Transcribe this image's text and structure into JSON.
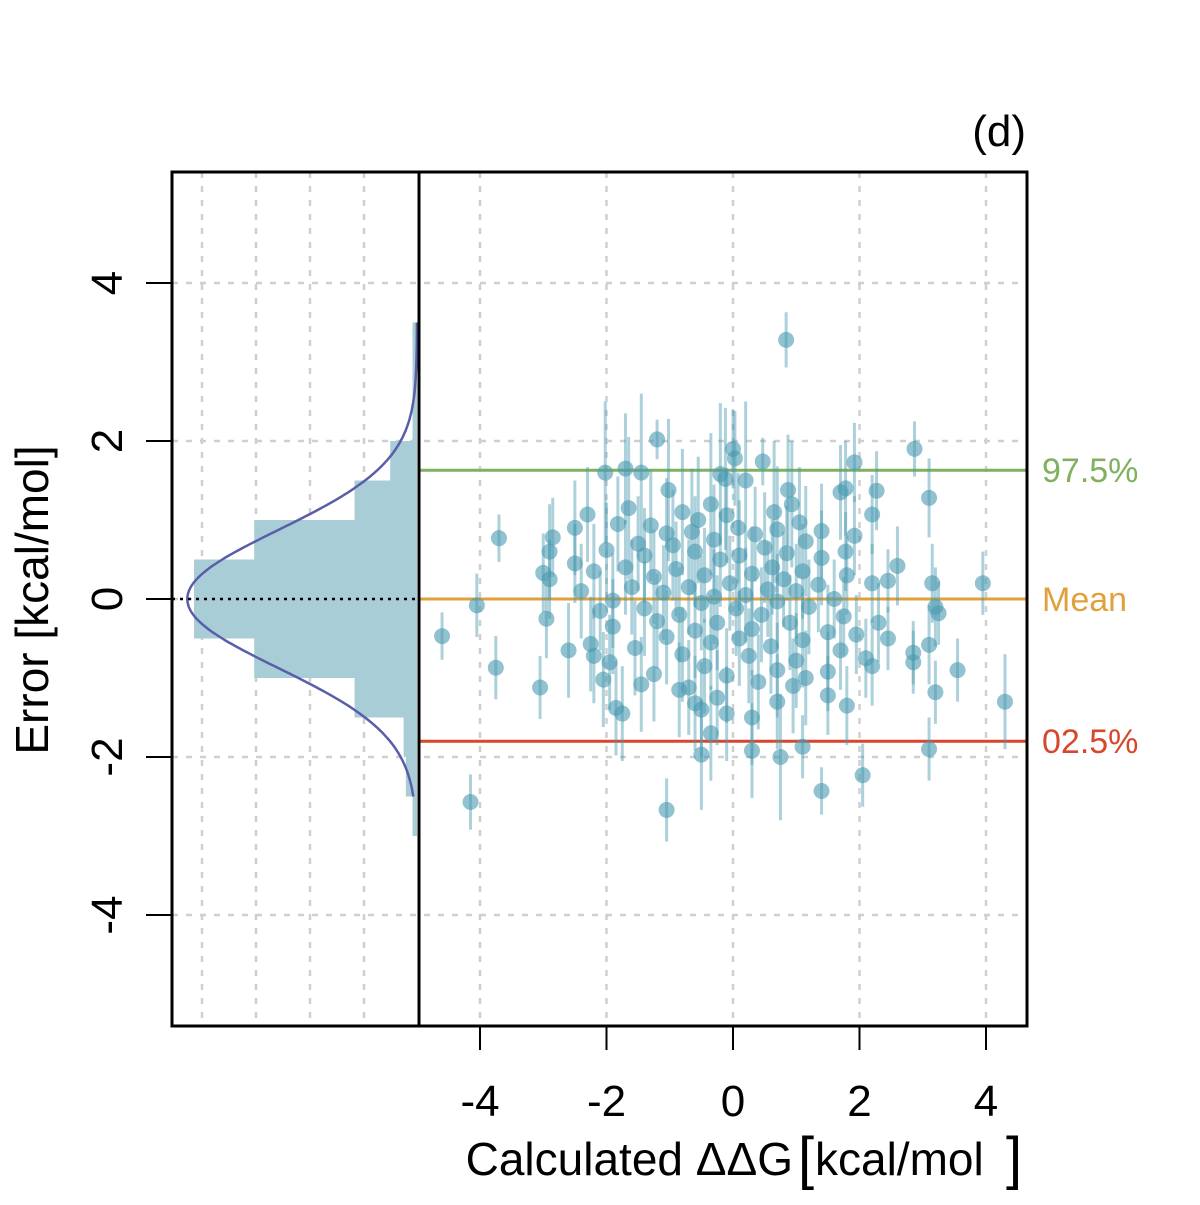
{
  "chart_data": {
    "type": "scatter",
    "panel_label": "(d)",
    "xlabel": "Calculated  ΔΔG",
    "xlabel_units": "kcal/mol",
    "ylabel": "Error [kcal/mol]",
    "xlim": [
      -5,
      4.7
    ],
    "ylim": [
      -5.4,
      5.4
    ],
    "x_ticks": [
      -4,
      -2,
      0,
      2,
      4
    ],
    "y_ticks": [
      -4,
      -2,
      0,
      2,
      4
    ],
    "x_tick_labels": [
      "-4",
      "-2",
      "0",
      "2",
      "4"
    ],
    "y_tick_labels": [
      "-4",
      "-2",
      "0",
      "2",
      "4"
    ],
    "grid": true,
    "reference_lines": [
      {
        "name": "97.5%",
        "label": "97.5%",
        "y": 1.63,
        "color": "#7fb160"
      },
      {
        "name": "mean",
        "label": "Mean",
        "y": 0.0,
        "color": "#e0a13a"
      },
      {
        "name": "2.5%",
        "label": "02.5%",
        "y": -1.8,
        "color": "#d6472d"
      }
    ],
    "zero_line_style": "dotted",
    "histogram": {
      "orientation": "horizontal",
      "bin_width": 0.5,
      "bins": [
        {
          "y0": -3.0,
          "y1": -2.5,
          "count": 0.2
        },
        {
          "y0": -2.5,
          "y1": -2.0,
          "count": 0.5
        },
        {
          "y0": -2.0,
          "y1": -1.5,
          "count": 0.6
        },
        {
          "y0": -1.5,
          "y1": -1.0,
          "count": 2.8
        },
        {
          "y0": -1.0,
          "y1": -0.5,
          "count": 7.3
        },
        {
          "y0": -0.5,
          "y1": 0.0,
          "count": 10.0
        },
        {
          "y0": 0.0,
          "y1": 0.5,
          "count": 10.0
        },
        {
          "y0": 0.5,
          "y1": 1.0,
          "count": 7.3
        },
        {
          "y0": 1.0,
          "y1": 1.5,
          "count": 2.8
        },
        {
          "y0": 1.5,
          "y1": 2.0,
          "count": 1.2
        },
        {
          "y0": 2.0,
          "y1": 2.5,
          "count": 0.2
        },
        {
          "y0": 2.5,
          "y1": 3.0,
          "count": 0.2
        },
        {
          "y0": 3.0,
          "y1": 3.5,
          "count": 0.2
        }
      ],
      "max_count": 10.0,
      "normal_fit": {
        "mean": 0.0,
        "sd": 0.87,
        "peak": 10.3,
        "y_range": [
          -2.5,
          3.5
        ]
      },
      "bar_color": "#a8cdd6",
      "curve_color": "#5a5ea8"
    },
    "point_color": "#4a9ab0",
    "series": [
      {
        "name": "residuals",
        "points": [
          {
            "x": 0.84,
            "y": 3.28,
            "err": 0.35
          },
          {
            "x": -1.2,
            "y": 2.02,
            "err": 0.25
          },
          {
            "x": 2.87,
            "y": 1.9,
            "err": 0.35
          },
          {
            "x": 0.0,
            "y": 1.9,
            "err": 0.5
          },
          {
            "x": 0.03,
            "y": 1.78,
            "err": 0.6
          },
          {
            "x": 0.47,
            "y": 1.74,
            "err": 0.3
          },
          {
            "x": 1.92,
            "y": 1.73,
            "err": 0.5
          },
          {
            "x": -0.2,
            "y": 1.58,
            "err": 0.9
          },
          {
            "x": -0.12,
            "y": 1.52,
            "err": 0.9
          },
          {
            "x": 0.2,
            "y": 1.5,
            "err": 1.0
          },
          {
            "x": -1.7,
            "y": 1.65,
            "err": 0.7
          },
          {
            "x": -2.02,
            "y": 1.6,
            "err": 0.9
          },
          {
            "x": -1.45,
            "y": 1.6,
            "err": 1.0
          },
          {
            "x": 1.78,
            "y": 1.4,
            "err": 0.6
          },
          {
            "x": 2.27,
            "y": 1.37,
            "err": 0.5
          },
          {
            "x": 1.7,
            "y": 1.35,
            "err": 0.6
          },
          {
            "x": -1.02,
            "y": 1.38,
            "err": 0.9
          },
          {
            "x": 0.87,
            "y": 1.38,
            "err": 0.7
          },
          {
            "x": 3.1,
            "y": 1.28,
            "err": 0.5
          },
          {
            "x": -0.35,
            "y": 1.2,
            "err": 0.9
          },
          {
            "x": 0.93,
            "y": 1.2,
            "err": 0.8
          },
          {
            "x": -1.65,
            "y": 1.15,
            "err": 0.9
          },
          {
            "x": -0.8,
            "y": 1.1,
            "err": 0.8
          },
          {
            "x": 0.65,
            "y": 1.1,
            "err": 0.9
          },
          {
            "x": 2.2,
            "y": 1.07,
            "err": 0.5
          },
          {
            "x": -2.3,
            "y": 1.07,
            "err": 0.6
          },
          {
            "x": -0.1,
            "y": 1.06,
            "err": 0.6
          },
          {
            "x": -0.55,
            "y": 1.0,
            "err": 0.8
          },
          {
            "x": 1.05,
            "y": 0.97,
            "err": 0.7
          },
          {
            "x": -1.82,
            "y": 0.95,
            "err": 0.6
          },
          {
            "x": -1.3,
            "y": 0.93,
            "err": 0.7
          },
          {
            "x": 0.08,
            "y": 0.9,
            "err": 0.7
          },
          {
            "x": 0.7,
            "y": 0.88,
            "err": 0.8
          },
          {
            "x": -2.5,
            "y": 0.9,
            "err": 0.6
          },
          {
            "x": 1.4,
            "y": 0.86,
            "err": 0.6
          },
          {
            "x": -0.65,
            "y": 0.85,
            "err": 0.8
          },
          {
            "x": -1.05,
            "y": 0.83,
            "err": 0.7
          },
          {
            "x": 0.35,
            "y": 0.82,
            "err": 0.6
          },
          {
            "x": 1.92,
            "y": 0.8,
            "err": 0.5
          },
          {
            "x": -2.85,
            "y": 0.78,
            "err": 0.5
          },
          {
            "x": -3.7,
            "y": 0.77,
            "err": 0.3
          },
          {
            "x": -0.3,
            "y": 0.75,
            "err": 0.7
          },
          {
            "x": 1.15,
            "y": 0.73,
            "err": 0.7
          },
          {
            "x": -1.5,
            "y": 0.7,
            "err": 0.6
          },
          {
            "x": -0.95,
            "y": 0.68,
            "err": 0.7
          },
          {
            "x": 0.5,
            "y": 0.65,
            "err": 0.7
          },
          {
            "x": -2.0,
            "y": 0.62,
            "err": 0.6
          },
          {
            "x": 1.78,
            "y": 0.6,
            "err": 0.5
          },
          {
            "x": -2.9,
            "y": 0.6,
            "err": 0.6
          },
          {
            "x": -0.6,
            "y": 0.6,
            "err": 0.7
          },
          {
            "x": 0.85,
            "y": 0.58,
            "err": 0.6
          },
          {
            "x": -1.4,
            "y": 0.55,
            "err": 0.6
          },
          {
            "x": 0.1,
            "y": 0.55,
            "err": 0.7
          },
          {
            "x": 1.4,
            "y": 0.52,
            "err": 0.6
          },
          {
            "x": -0.2,
            "y": 0.5,
            "err": 0.6
          },
          {
            "x": -2.5,
            "y": 0.45,
            "err": 0.5
          },
          {
            "x": 2.6,
            "y": 0.42,
            "err": 0.5
          },
          {
            "x": -1.7,
            "y": 0.4,
            "err": 0.6
          },
          {
            "x": 0.62,
            "y": 0.4,
            "err": 0.6
          },
          {
            "x": -0.9,
            "y": 0.38,
            "err": 0.6
          },
          {
            "x": 1.1,
            "y": 0.35,
            "err": 0.6
          },
          {
            "x": -3.0,
            "y": 0.33,
            "err": 0.5
          },
          {
            "x": -2.2,
            "y": 0.35,
            "err": 0.6
          },
          {
            "x": 0.3,
            "y": 0.32,
            "err": 0.6
          },
          {
            "x": 1.8,
            "y": 0.3,
            "err": 0.5
          },
          {
            "x": -0.45,
            "y": 0.3,
            "err": 0.6
          },
          {
            "x": -1.25,
            "y": 0.28,
            "err": 0.6
          },
          {
            "x": -2.9,
            "y": 0.25,
            "err": 0.5
          },
          {
            "x": 0.8,
            "y": 0.25,
            "err": 0.6
          },
          {
            "x": 2.45,
            "y": 0.23,
            "err": 0.4
          },
          {
            "x": 3.95,
            "y": 0.2,
            "err": 0.4
          },
          {
            "x": 3.15,
            "y": 0.2,
            "err": 0.5
          },
          {
            "x": 2.2,
            "y": 0.2,
            "err": 0.5
          },
          {
            "x": -0.05,
            "y": 0.2,
            "err": 0.6
          },
          {
            "x": 1.35,
            "y": 0.18,
            "err": 0.6
          },
          {
            "x": -1.6,
            "y": 0.15,
            "err": 0.6
          },
          {
            "x": -0.7,
            "y": 0.15,
            "err": 0.6
          },
          {
            "x": 0.55,
            "y": 0.12,
            "err": 0.6
          },
          {
            "x": -2.4,
            "y": 0.1,
            "err": 0.6
          },
          {
            "x": 1.0,
            "y": 0.1,
            "err": 0.6
          },
          {
            "x": -1.1,
            "y": 0.08,
            "err": 0.6
          },
          {
            "x": 0.2,
            "y": 0.05,
            "err": 0.6
          },
          {
            "x": -0.3,
            "y": 0.03,
            "err": 0.6
          },
          {
            "x": 1.6,
            "y": 0.0,
            "err": 0.5
          },
          {
            "x": -1.9,
            "y": -0.02,
            "err": 0.6
          },
          {
            "x": 0.7,
            "y": -0.03,
            "err": 0.6
          },
          {
            "x": -4.05,
            "y": -0.08,
            "err": 0.4
          },
          {
            "x": -0.5,
            "y": -0.05,
            "err": 0.6
          },
          {
            "x": 3.2,
            "y": -0.1,
            "err": 0.5
          },
          {
            "x": 1.2,
            "y": -0.1,
            "err": 0.6
          },
          {
            "x": -1.4,
            "y": -0.12,
            "err": 0.6
          },
          {
            "x": 0.05,
            "y": -0.12,
            "err": 0.6
          },
          {
            "x": -2.1,
            "y": -0.15,
            "err": 0.5
          },
          {
            "x": 3.25,
            "y": -0.18,
            "err": 0.4
          },
          {
            "x": 0.45,
            "y": -0.2,
            "err": 0.6
          },
          {
            "x": -0.85,
            "y": -0.2,
            "err": 0.6
          },
          {
            "x": 1.75,
            "y": -0.22,
            "err": 0.5
          },
          {
            "x": -2.95,
            "y": -0.25,
            "err": 0.5
          },
          {
            "x": -1.2,
            "y": -0.28,
            "err": 0.6
          },
          {
            "x": 0.9,
            "y": -0.3,
            "err": 0.6
          },
          {
            "x": -0.25,
            "y": -0.3,
            "err": 0.6
          },
          {
            "x": 2.3,
            "y": -0.3,
            "err": 0.5
          },
          {
            "x": -1.9,
            "y": -0.35,
            "err": 0.6
          },
          {
            "x": 0.3,
            "y": -0.38,
            "err": 0.6
          },
          {
            "x": -0.6,
            "y": -0.4,
            "err": 0.6
          },
          {
            "x": 1.5,
            "y": -0.42,
            "err": 0.6
          },
          {
            "x": -4.6,
            "y": -0.47,
            "err": 0.3
          },
          {
            "x": 1.95,
            "y": -0.45,
            "err": 0.5
          },
          {
            "x": 2.45,
            "y": -0.5,
            "err": 0.4
          },
          {
            "x": -1.05,
            "y": -0.48,
            "err": 0.6
          },
          {
            "x": 0.1,
            "y": -0.5,
            "err": 0.6
          },
          {
            "x": 1.1,
            "y": -0.52,
            "err": 0.6
          },
          {
            "x": -0.35,
            "y": -0.55,
            "err": 0.6
          },
          {
            "x": -2.25,
            "y": -0.57,
            "err": 0.6
          },
          {
            "x": 3.1,
            "y": -0.58,
            "err": 0.5
          },
          {
            "x": 0.6,
            "y": -0.6,
            "err": 0.6
          },
          {
            "x": -1.55,
            "y": -0.62,
            "err": 0.6
          },
          {
            "x": -2.6,
            "y": -0.65,
            "err": 0.6
          },
          {
            "x": 1.7,
            "y": -0.65,
            "err": 0.5
          },
          {
            "x": 2.85,
            "y": -0.68,
            "err": 0.4
          },
          {
            "x": -0.8,
            "y": -0.7,
            "err": 0.6
          },
          {
            "x": 0.25,
            "y": -0.72,
            "err": 0.6
          },
          {
            "x": -2.2,
            "y": -0.72,
            "err": 0.6
          },
          {
            "x": 2.1,
            "y": -0.75,
            "err": 0.5
          },
          {
            "x": 1.0,
            "y": -0.78,
            "err": 0.6
          },
          {
            "x": -1.95,
            "y": -0.8,
            "err": 0.6
          },
          {
            "x": 2.85,
            "y": -0.8,
            "err": 0.4
          },
          {
            "x": 2.2,
            "y": -0.85,
            "err": 0.5
          },
          {
            "x": -0.45,
            "y": -0.85,
            "err": 0.6
          },
          {
            "x": -3.75,
            "y": -0.87,
            "err": 0.4
          },
          {
            "x": 3.55,
            "y": -0.9,
            "err": 0.4
          },
          {
            "x": 0.7,
            "y": -0.9,
            "err": 0.6
          },
          {
            "x": 1.5,
            "y": -0.92,
            "err": 0.5
          },
          {
            "x": -1.25,
            "y": -0.95,
            "err": 0.6
          },
          {
            "x": -0.1,
            "y": -0.97,
            "err": 0.6
          },
          {
            "x": 1.15,
            "y": -1.0,
            "err": 0.6
          },
          {
            "x": -2.05,
            "y": -1.02,
            "err": 0.6
          },
          {
            "x": 0.4,
            "y": -1.05,
            "err": 0.6
          },
          {
            "x": -1.45,
            "y": -1.08,
            "err": 0.6
          },
          {
            "x": 0.95,
            "y": -1.1,
            "err": 0.6
          },
          {
            "x": -3.05,
            "y": -1.12,
            "err": 0.4
          },
          {
            "x": -0.7,
            "y": -1.12,
            "err": 0.6
          },
          {
            "x": -0.85,
            "y": -1.15,
            "err": 0.6
          },
          {
            "x": 3.2,
            "y": -1.18,
            "err": 0.4
          },
          {
            "x": 1.5,
            "y": -1.22,
            "err": 0.5
          },
          {
            "x": -0.25,
            "y": -1.25,
            "err": 0.6
          },
          {
            "x": 4.3,
            "y": -1.3,
            "err": 0.6
          },
          {
            "x": 0.7,
            "y": -1.3,
            "err": 0.6
          },
          {
            "x": -0.6,
            "y": -1.32,
            "err": 0.6
          },
          {
            "x": 1.8,
            "y": -1.35,
            "err": 0.5
          },
          {
            "x": -1.85,
            "y": -1.38,
            "err": 0.6
          },
          {
            "x": -0.5,
            "y": -1.4,
            "err": 0.6
          },
          {
            "x": -1.75,
            "y": -1.45,
            "err": 0.6
          },
          {
            "x": -0.1,
            "y": -1.45,
            "err": 0.6
          },
          {
            "x": 0.3,
            "y": -1.5,
            "err": 0.6
          },
          {
            "x": -0.35,
            "y": -1.7,
            "err": 0.6
          },
          {
            "x": 1.1,
            "y": -1.87,
            "err": 0.4
          },
          {
            "x": 3.1,
            "y": -1.9,
            "err": 0.4
          },
          {
            "x": 0.3,
            "y": -1.92,
            "err": 0.6
          },
          {
            "x": -0.5,
            "y": -1.97,
            "err": 0.7
          },
          {
            "x": 0.75,
            "y": -2.0,
            "err": 0.8
          },
          {
            "x": 2.05,
            "y": -2.23,
            "err": 0.4
          },
          {
            "x": 1.4,
            "y": -2.43,
            "err": 0.3
          },
          {
            "x": -4.15,
            "y": -2.57,
            "err": 0.35
          },
          {
            "x": -1.05,
            "y": -2.67,
            "err": 0.4
          }
        ]
      }
    ]
  }
}
